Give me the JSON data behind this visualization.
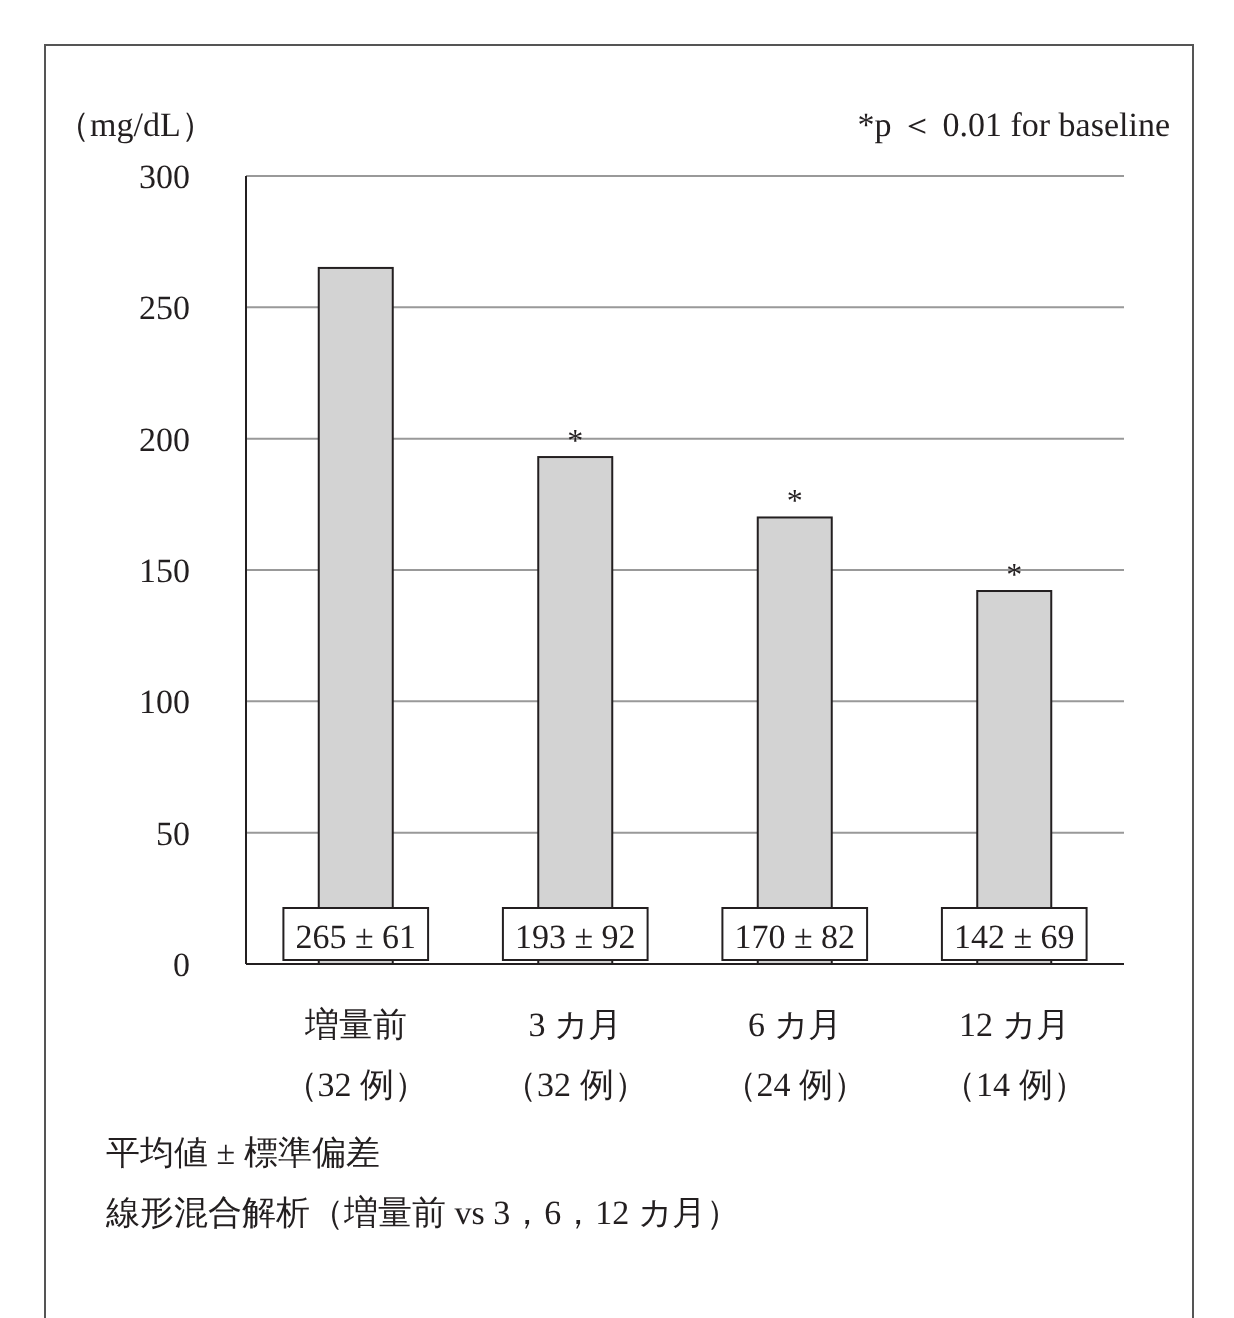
{
  "chart_data": {
    "type": "bar",
    "ylabel": "（mg/dL）",
    "categories": [
      "増量前（32 例）",
      "3 カ月（32 例）",
      "6 カ月（24 例）",
      "12 カ月（14 例）"
    ],
    "values": [
      265,
      193,
      170,
      142
    ],
    "color": "#d3d3d3",
    "value_labels": [
      "265 ± 61",
      "193 ± 92",
      "170 ± 82",
      "142 ± 69"
    ],
    "ylim": [
      0,
      300
    ],
    "yticks": [
      0,
      50,
      100,
      150,
      200,
      250,
      300
    ],
    "grid": "y",
    "annotations": [
      "*p ＜ 0.01 for baseline",
      {
        "text": "*",
        "x": "3 カ月（32 例）",
        "y": 193
      },
      {
        "text": "*",
        "x": "6 カ月（24 例）",
        "y": 170
      },
      {
        "text": "*",
        "x": "12 カ月（14 例）",
        "y": 142
      },
      "平均値 ± 標準偏差",
      "線形混合解析（増量前 vs 3，6，12 カ月）"
    ]
  }
}
